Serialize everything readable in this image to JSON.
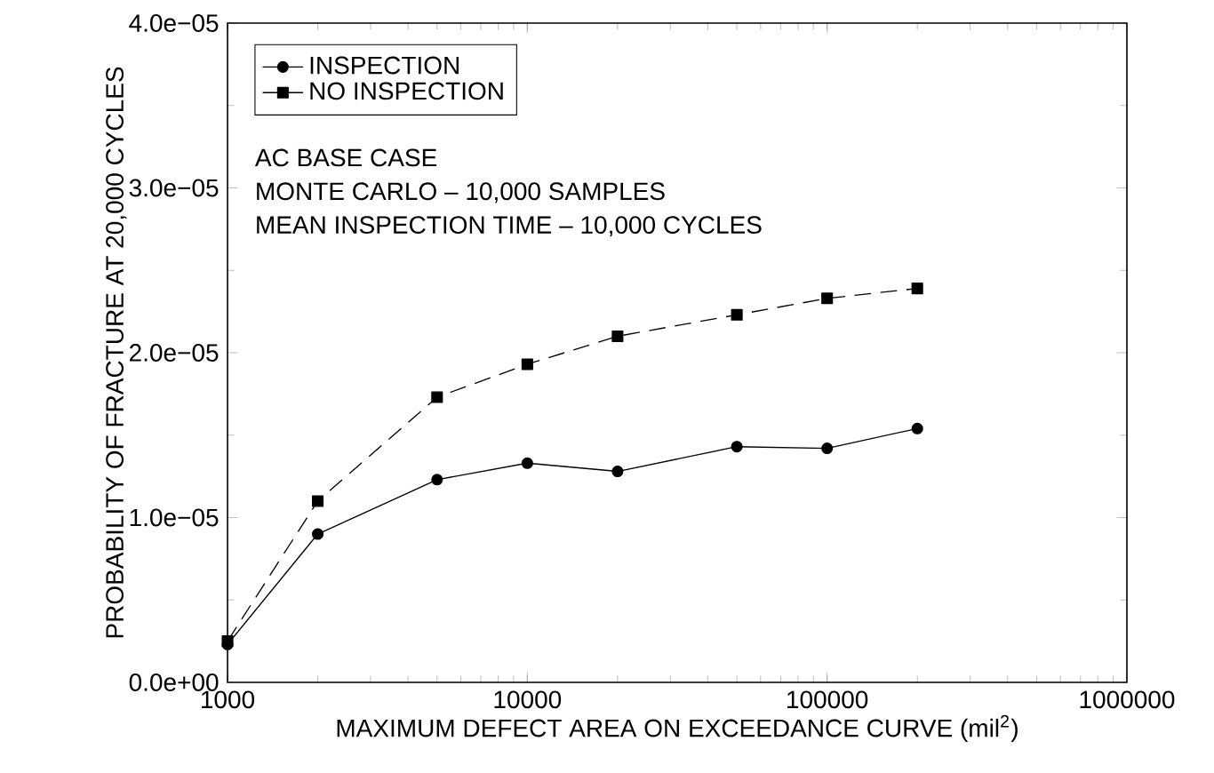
{
  "chart_data": {
    "type": "line",
    "xlabel": "MAXIMUM DEFECT AREA ON EXCEEDANCE CURVE (mil$^{2}$)",
    "ylabel": "PROBABILITY OF FRACTURE AT 20,000 CYCLES",
    "x": [
      1000,
      2000,
      5000,
      10000,
      20000,
      50000,
      100000,
      200000
    ],
    "series": [
      {
        "name": "INSPECTION",
        "color": "#000000",
        "marker": "circle",
        "line_style": "solid",
        "values": [
          2.3e-06,
          9e-06,
          1.23e-05,
          1.33e-05,
          1.28e-05,
          1.43e-05,
          1.42e-05,
          1.54e-05
        ]
      },
      {
        "name": "NO INSPECTION",
        "color": "#000000",
        "marker": "square",
        "line_style": "dashed",
        "values": [
          2.5e-06,
          1.1e-05,
          1.73e-05,
          1.93e-05,
          2.1e-05,
          2.23e-05,
          2.33e-05,
          2.39e-05
        ]
      }
    ],
    "log": "x",
    "xlim": [
      1000,
      1000000
    ],
    "xticks": [
      1000,
      10000,
      100000,
      1000000
    ],
    "ylim": [
      0,
      4e-05
    ],
    "yticks": [
      {
        "value": 0,
        "label": "0.0e+00"
      },
      {
        "value": 1e-05,
        "label": "1.0e−05"
      },
      {
        "value": 2e-05,
        "label": "2.0e−05"
      },
      {
        "value": 3e-05,
        "label": "3.0e−05"
      },
      {
        "value": 4e-05,
        "label": "4.0e−05"
      }
    ],
    "legend": "top left",
    "grid": false,
    "annotations": [
      "AC BASE CASE",
      "MONTE CARLO – 10,000 SAMPLES",
      "MEAN INSPECTION TIME – 10,000 CYCLES"
    ]
  }
}
